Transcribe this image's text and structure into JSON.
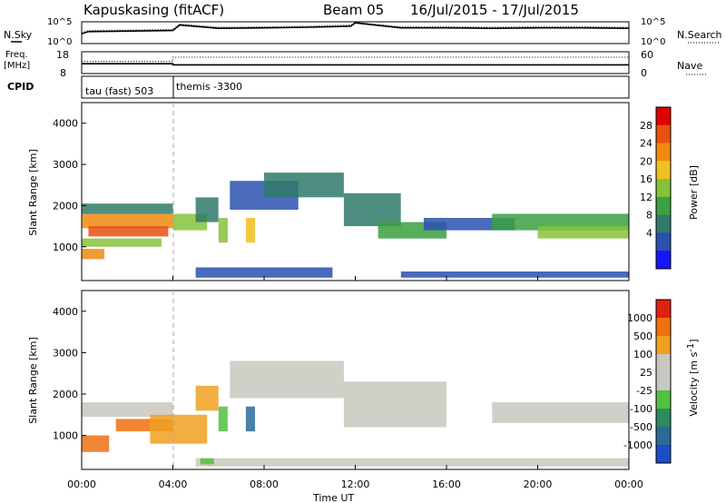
{
  "header": {
    "station": "Kapuskasing (fitACF)",
    "beam": "Beam 05",
    "daterange": "16/Jul/2015 - 17/Jul/2015"
  },
  "noise_panel": {
    "left_label": "N.Sky",
    "right_label": "N.Search",
    "left_ticks": [
      "10^5",
      "10^0"
    ],
    "right_ticks": [
      "10^5",
      "10^0"
    ]
  },
  "freq_panel": {
    "left_label_1": "Freq.",
    "left_label_2": "[MHz]",
    "left_ticks": [
      "18",
      "8"
    ],
    "right_label": "Nave",
    "right_ticks": [
      "60",
      "0"
    ]
  },
  "cpid": {
    "label": "CPID",
    "segments": [
      {
        "text": "tau (fast) 503"
      },
      {
        "text": "themis -3300"
      }
    ]
  },
  "power_panel": {
    "ylabel": "Slant Range [km]",
    "yticks": [
      "4000",
      "3000",
      "2000",
      "1000"
    ],
    "colorbar_label": "Power [dB]",
    "colorbar_ticks": [
      "28",
      "24",
      "20",
      "16",
      "12",
      "8",
      "4"
    ],
    "colors": [
      "#1515ff",
      "#2a50b0",
      "#2f7a6a",
      "#3aa040",
      "#86c23a",
      "#f0c020",
      "#f08a10",
      "#e85010",
      "#e00000"
    ]
  },
  "velocity_panel": {
    "ylabel": "Slant Range [km]",
    "yticks": [
      "4000",
      "3000",
      "2000",
      "1000"
    ],
    "colorbar_label": "Velocity [m s",
    "colorbar_label_sup": "-1",
    "colorbar_ticks": [
      "1000",
      "500",
      "100",
      "25",
      "-25",
      "-100",
      "-500",
      "-1000"
    ],
    "colors": [
      "#1a4ec8",
      "#2c6a9a",
      "#2e8a60",
      "#52c040",
      "#c8c8c0",
      "#c8c8c0",
      "#f0a020",
      "#f07010",
      "#e02010"
    ]
  },
  "xaxis": {
    "ticks": [
      "00:00",
      "04:00",
      "08:00",
      "12:00",
      "16:00",
      "20:00",
      "00:00"
    ],
    "label": "Time UT"
  },
  "chart_data": [
    {
      "type": "line",
      "name": "noise",
      "x_hours": [
        0,
        0.3,
        4,
        4.3,
        6,
        8,
        10,
        11.8,
        12,
        14,
        16,
        18,
        20,
        22,
        24
      ],
      "series": [
        {
          "values": [
            0.45,
            0.55,
            0.6,
            0.85,
            0.7,
            0.72,
            0.75,
            0.8,
            0.95,
            0.72,
            0.72,
            0.7,
            0.72,
            0.72,
            0.7
          ]
        }
      ]
    },
    {
      "type": "line",
      "name": "frequency",
      "x_hours": [
        0,
        4,
        4,
        24
      ],
      "series": [
        {
          "values": [
            0.45,
            0.45,
            0.4,
            0.4
          ]
        },
        {
          "values": [
            0.55,
            0.55,
            0.75,
            0.75
          ]
        }
      ]
    },
    {
      "type": "heatmap",
      "name": "power",
      "x_range_hours": [
        0,
        24
      ],
      "y_range_km": [
        180,
        4500
      ],
      "regions": [
        {
          "t0": 0.0,
          "t1": 4.0,
          "r0": 1450,
          "r1": 1800,
          "lvl": 6
        },
        {
          "t0": 0.3,
          "t1": 3.8,
          "r0": 1250,
          "r1": 1500,
          "lvl": 7
        },
        {
          "t0": 0.0,
          "t1": 1.0,
          "r0": 700,
          "r1": 950,
          "lvl": 6
        },
        {
          "t0": 0.0,
          "t1": 3.5,
          "r0": 1000,
          "r1": 1200,
          "lvl": 4
        },
        {
          "t0": 0.0,
          "t1": 4.0,
          "r0": 1800,
          "r1": 2050,
          "lvl": 2
        },
        {
          "t0": 4.0,
          "t1": 5.5,
          "r0": 1400,
          "r1": 1800,
          "lvl": 4
        },
        {
          "t0": 5.0,
          "t1": 6.0,
          "r0": 1600,
          "r1": 2200,
          "lvl": 2
        },
        {
          "t0": 6.0,
          "t1": 6.4,
          "r0": 1100,
          "r1": 1700,
          "lvl": 4
        },
        {
          "t0": 7.2,
          "t1": 7.6,
          "r0": 1100,
          "r1": 1700,
          "lvl": 5
        },
        {
          "t0": 5.0,
          "t1": 11.0,
          "r0": 250,
          "r1": 500,
          "lvl": 1
        },
        {
          "t0": 6.5,
          "t1": 9.5,
          "r0": 1900,
          "r1": 2600,
          "lvl": 1
        },
        {
          "t0": 8.0,
          "t1": 11.5,
          "r0": 2200,
          "r1": 2800,
          "lvl": 2
        },
        {
          "t0": 11.5,
          "t1": 14.0,
          "r0": 1500,
          "r1": 2300,
          "lvl": 2
        },
        {
          "t0": 13.0,
          "t1": 16.0,
          "r0": 1200,
          "r1": 1600,
          "lvl": 3
        },
        {
          "t0": 15.0,
          "t1": 19.0,
          "r0": 1400,
          "r1": 1700,
          "lvl": 1
        },
        {
          "t0": 18.0,
          "t1": 24.0,
          "r0": 1400,
          "r1": 1800,
          "lvl": 3
        },
        {
          "t0": 20.0,
          "t1": 24.0,
          "r0": 1200,
          "r1": 1500,
          "lvl": 4
        },
        {
          "t0": 14.0,
          "t1": 24.0,
          "r0": 250,
          "r1": 400,
          "lvl": 1
        }
      ]
    },
    {
      "type": "heatmap",
      "name": "velocity",
      "x_range_hours": [
        0,
        24
      ],
      "y_range_km": [
        180,
        4500
      ],
      "regions": [
        {
          "t0": 0.0,
          "t1": 4.0,
          "r0": 1450,
          "r1": 1800,
          "lvl": 4
        },
        {
          "t0": 0.0,
          "t1": 1.2,
          "r0": 600,
          "r1": 1000,
          "lvl": 7
        },
        {
          "t0": 1.5,
          "t1": 4.0,
          "r0": 1100,
          "r1": 1400,
          "lvl": 7
        },
        {
          "t0": 3.0,
          "t1": 5.5,
          "r0": 800,
          "r1": 1500,
          "lvl": 6
        },
        {
          "t0": 5.0,
          "t1": 6.0,
          "r0": 1600,
          "r1": 2200,
          "lvl": 6
        },
        {
          "t0": 6.0,
          "t1": 6.4,
          "r0": 1100,
          "r1": 1700,
          "lvl": 3
        },
        {
          "t0": 7.2,
          "t1": 7.6,
          "r0": 1100,
          "r1": 1700,
          "lvl": 1
        },
        {
          "t0": 6.5,
          "t1": 11.5,
          "r0": 1900,
          "r1": 2800,
          "lvl": 4
        },
        {
          "t0": 11.5,
          "t1": 16.0,
          "r0": 1200,
          "r1": 2300,
          "lvl": 4
        },
        {
          "t0": 18.0,
          "t1": 24.0,
          "r0": 1300,
          "r1": 1800,
          "lvl": 4
        },
        {
          "t0": 5.0,
          "t1": 24.0,
          "r0": 250,
          "r1": 450,
          "lvl": 4
        },
        {
          "t0": 5.2,
          "t1": 5.8,
          "r0": 300,
          "r1": 450,
          "lvl": 3
        }
      ]
    }
  ]
}
